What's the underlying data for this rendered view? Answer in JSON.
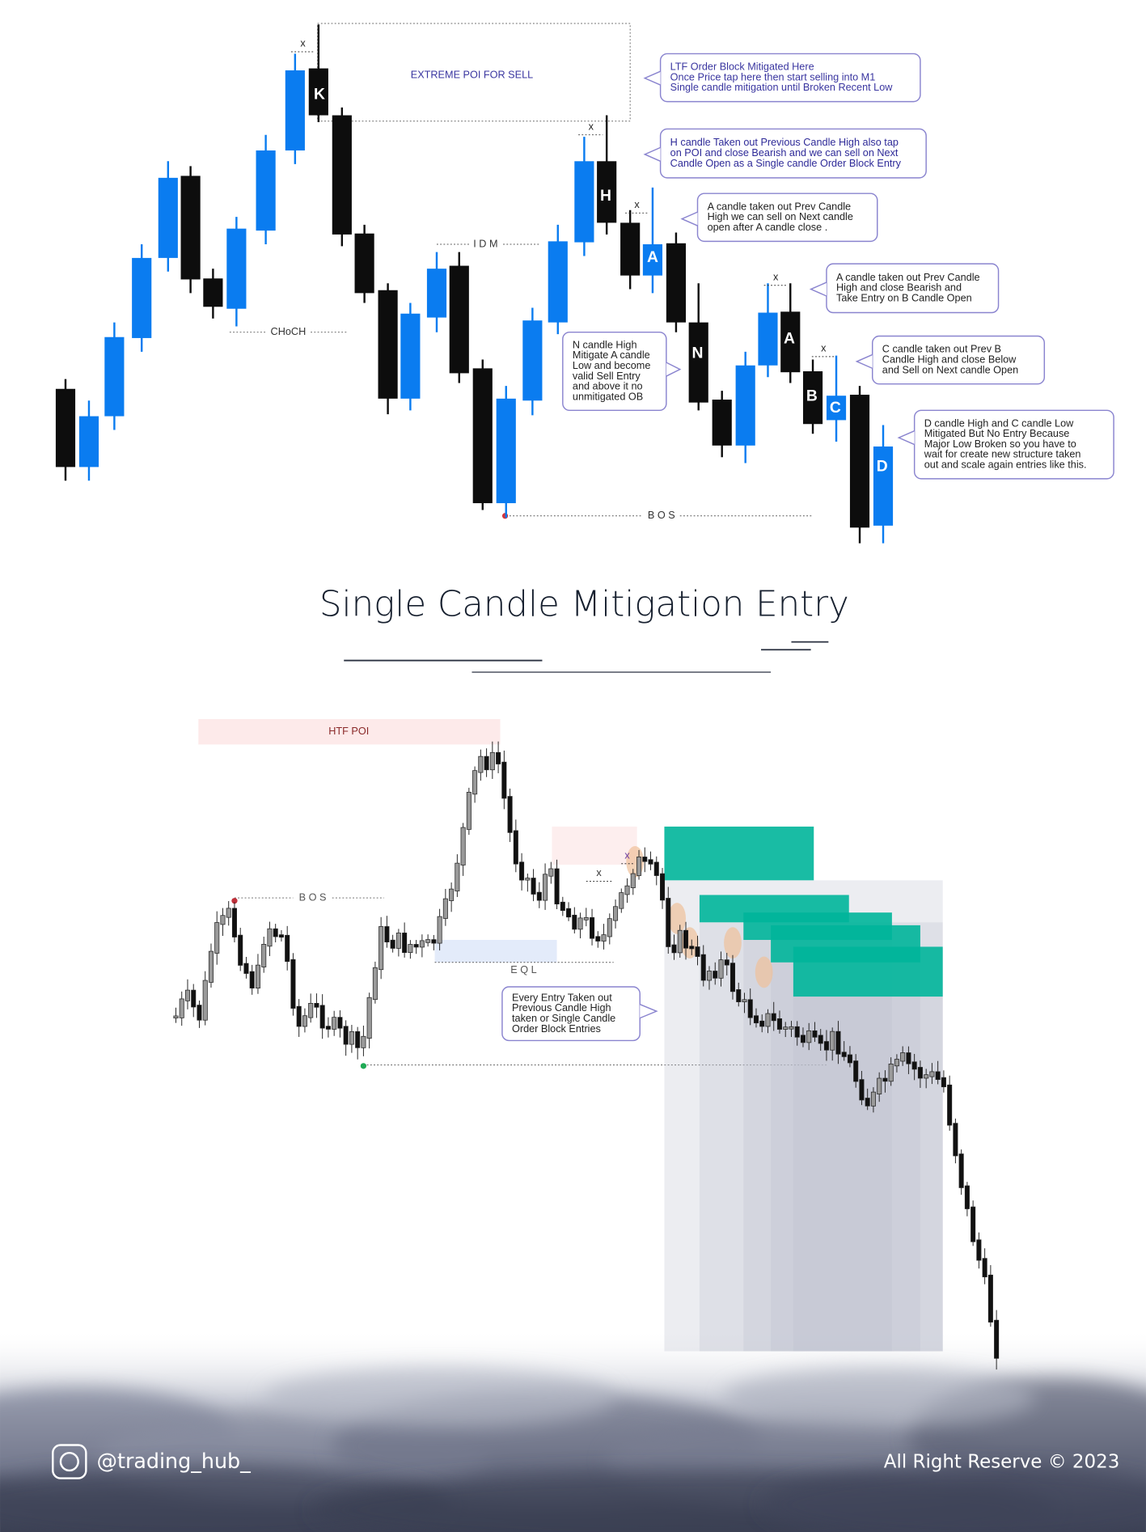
{
  "top_chart": {
    "poi_label": "EXTREME POI FOR SELL",
    "idm_label": "I D M",
    "choch_label": "CHoCH",
    "bos_label": "B O S",
    "candle_labels": [
      "K",
      "H",
      "A",
      "N",
      "A",
      "B",
      "C",
      "D"
    ],
    "x_marks": [
      "x",
      "x",
      "x",
      "x",
      "x"
    ],
    "callouts": [
      {
        "lines": [
          "LTF Order Block Mitigated Here",
          "Once Price tap here then start selling into M1",
          "Single candle mitigation until Broken Recent Low"
        ]
      },
      {
        "lines": [
          "H candle Taken out Previous Candle High also tap",
          "on POI and close Bearish and we can sell on Next",
          "Candle Open as a Single candle Order Block Entry"
        ]
      },
      {
        "lines": [
          "A candle taken out Prev Candle",
          "High we can sell on Next candle",
          "open after A candle close ."
        ]
      },
      {
        "lines": [
          "A candle taken out Prev Candle",
          "High and close Bearish and",
          "Take Entry on B Candle Open"
        ]
      },
      {
        "lines": [
          "C candle taken out Prev B",
          "Candle  High and close Below",
          "and Sell on Next candle Open"
        ]
      },
      {
        "lines": [
          "D candle High and C candle Low",
          "Mitigated But No Entry Because",
          "Major Low Broken so you have to",
          "wait for create new structure taken",
          "out and scale again entries like this."
        ]
      },
      {
        "lines": [
          "N candle High",
          "Mitigate A candle",
          "Low and become",
          "valid Sell Entry",
          "and   above it no",
          "unmitigated OB"
        ]
      }
    ]
  },
  "title": "Single Candle Mitigation Entry",
  "bottom_chart": {
    "htf_poi_label": "HTF   POI",
    "bos_label": "B O S",
    "eql_label": "E Q L",
    "x_marks": [
      "x",
      "x"
    ],
    "callout": {
      "lines": [
        "Every Entry Taken out",
        "Previous Candle High",
        "taken  or Single Candle",
        "Order Block Entries"
      ]
    }
  },
  "footer": {
    "handle": "@trading_hub_",
    "copyright": "All Right Reserve © 2023"
  }
}
